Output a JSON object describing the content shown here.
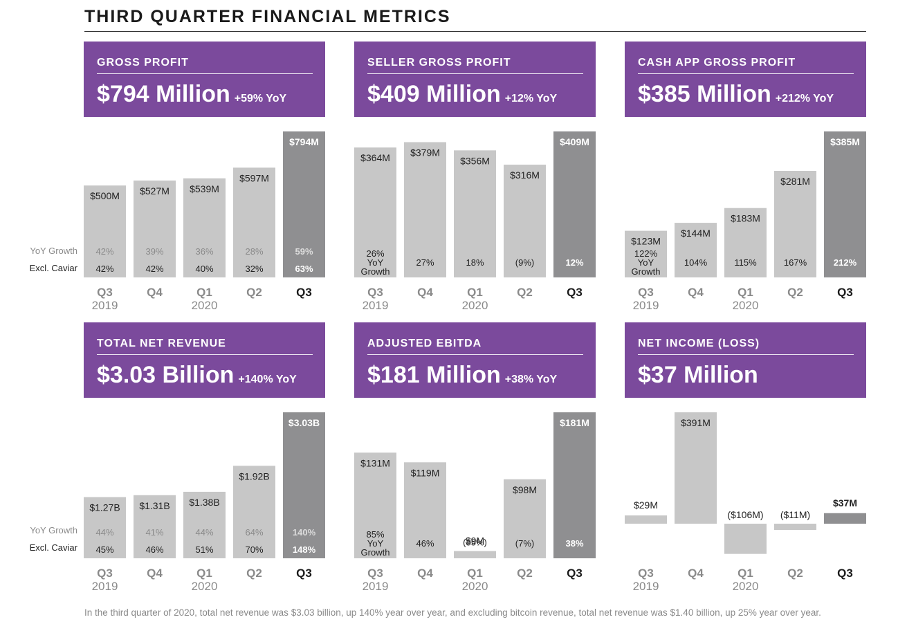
{
  "page": {
    "title": "THIRD QUARTER FINANCIAL METRICS",
    "row_labels": {
      "yoy_growth": "YoY Growth",
      "excl_caviar": "Excl. Caviar"
    },
    "footnote": "In the third quarter of 2020, total net revenue was $3.03 billion, up 140% year over year, and excluding bitcoin revenue, total net revenue was $1.40 billion, up 25% year over year."
  },
  "colors": {
    "header_purple": "#7b4a9c",
    "bar_light": "#c7c7c7",
    "bar_current": "#8f8f91",
    "muted_text": "#8a8a8a"
  },
  "panels": [
    {
      "label": "GROSS PROFIT",
      "headline": "$794 Million",
      "yoy": "+59% YoY"
    },
    {
      "label": "SELLER GROSS PROFIT",
      "headline": "$409 Million",
      "yoy": "+12% YoY"
    },
    {
      "label": "CASH APP GROSS PROFIT",
      "headline": "$385 Million",
      "yoy": "+212% YoY"
    },
    {
      "label": "TOTAL NET REVENUE",
      "headline": "$3.03 Billion",
      "yoy": "+140% YoY"
    },
    {
      "label": "ADJUSTED EBITDA",
      "headline": "$181 Million",
      "yoy": "+38% YoY"
    },
    {
      "label": "NET INCOME (LOSS)",
      "headline": "$37 Million",
      "yoy": ""
    }
  ],
  "chart_data": [
    {
      "type": "bar",
      "title": "GROSS PROFIT",
      "categories": [
        "Q3 2019",
        "Q4",
        "Q1 2020",
        "Q2",
        "Q3"
      ],
      "tick_labels": [
        [
          "Q3",
          "2019"
        ],
        [
          "Q4",
          ""
        ],
        [
          "Q1",
          "2020"
        ],
        [
          "Q2",
          ""
        ],
        [
          "Q3",
          ""
        ]
      ],
      "values": [
        500,
        527,
        539,
        597,
        794
      ],
      "value_labels": [
        "$500M",
        "$527M",
        "$539M",
        "$597M",
        "$794M"
      ],
      "unit": "$M",
      "yoy_growth": [
        "42%",
        "39%",
        "36%",
        "28%",
        "59%"
      ],
      "excl_caviar": [
        "42%",
        "42%",
        "40%",
        "32%",
        "63%"
      ],
      "ylim": [
        0,
        794
      ]
    },
    {
      "type": "bar",
      "title": "SELLER GROSS PROFIT",
      "categories": [
        "Q3 2019",
        "Q4",
        "Q1 2020",
        "Q2",
        "Q3"
      ],
      "tick_labels": [
        [
          "Q3",
          "2019"
        ],
        [
          "Q4",
          ""
        ],
        [
          "Q1",
          "2020"
        ],
        [
          "Q2",
          ""
        ],
        [
          "Q3",
          ""
        ]
      ],
      "values": [
        364,
        379,
        356,
        316,
        409
      ],
      "value_labels": [
        "$364M",
        "$379M",
        "$356M",
        "$316M",
        "$409M"
      ],
      "unit": "$M",
      "yoy_growth": [
        "26%",
        "27%",
        "18%",
        "(9%)",
        "12%"
      ],
      "first_bar_note": [
        "YoY",
        "Growth"
      ],
      "ylim": [
        0,
        409
      ]
    },
    {
      "type": "bar",
      "title": "CASH APP GROSS PROFIT",
      "categories": [
        "Q3 2019",
        "Q4",
        "Q1 2020",
        "Q2",
        "Q3"
      ],
      "tick_labels": [
        [
          "Q3",
          "2019"
        ],
        [
          "Q4",
          ""
        ],
        [
          "Q1",
          "2020"
        ],
        [
          "Q2",
          ""
        ],
        [
          "Q3",
          ""
        ]
      ],
      "values": [
        123,
        144,
        183,
        281,
        385
      ],
      "value_labels": [
        "$123M",
        "$144M",
        "$183M",
        "$281M",
        "$385M"
      ],
      "unit": "$M",
      "yoy_growth": [
        "122%",
        "104%",
        "115%",
        "167%",
        "212%"
      ],
      "first_bar_note": [
        "YoY",
        "Growth"
      ],
      "ylim": [
        0,
        385
      ]
    },
    {
      "type": "bar",
      "title": "TOTAL NET REVENUE",
      "categories": [
        "Q3 2019",
        "Q4",
        "Q1 2020",
        "Q2",
        "Q3"
      ],
      "tick_labels": [
        [
          "Q3",
          "2019"
        ],
        [
          "Q4",
          ""
        ],
        [
          "Q1",
          "2020"
        ],
        [
          "Q2",
          ""
        ],
        [
          "Q3",
          ""
        ]
      ],
      "values": [
        1.27,
        1.31,
        1.38,
        1.92,
        3.03
      ],
      "value_labels": [
        "$1.27B",
        "$1.31B",
        "$1.38B",
        "$1.92B",
        "$3.03B"
      ],
      "unit": "$B",
      "yoy_growth": [
        "44%",
        "41%",
        "44%",
        "64%",
        "140%"
      ],
      "excl_caviar": [
        "45%",
        "46%",
        "51%",
        "70%",
        "148%"
      ],
      "ylim": [
        0,
        3.03
      ]
    },
    {
      "type": "bar",
      "title": "ADJUSTED EBITDA",
      "categories": [
        "Q3 2019",
        "Q4",
        "Q1 2020",
        "Q2",
        "Q3"
      ],
      "tick_labels": [
        [
          "Q3",
          "2019"
        ],
        [
          "Q4",
          ""
        ],
        [
          "Q1",
          "2020"
        ],
        [
          "Q2",
          ""
        ],
        [
          "Q3",
          ""
        ]
      ],
      "values": [
        131,
        119,
        9,
        98,
        181
      ],
      "value_labels": [
        "$131M",
        "$119M",
        "$9M",
        "$98M",
        "$181M"
      ],
      "unit": "$M",
      "yoy_growth": [
        "85%",
        "46%",
        "(85%)",
        "(7%)",
        "38%"
      ],
      "first_bar_note": [
        "YoY",
        "Growth"
      ],
      "ylim": [
        0,
        181
      ]
    },
    {
      "type": "bar",
      "title": "NET INCOME (LOSS)",
      "categories": [
        "Q3 2019",
        "Q4",
        "Q1 2020",
        "Q2",
        "Q3"
      ],
      "tick_labels": [
        [
          "Q3",
          "2019"
        ],
        [
          "Q4",
          ""
        ],
        [
          "Q1",
          "2020"
        ],
        [
          "Q2",
          ""
        ],
        [
          "Q3",
          ""
        ]
      ],
      "values": [
        29,
        391,
        -106,
        -11,
        37
      ],
      "value_labels": [
        "$29M",
        "$391M",
        "($106M)",
        "($11M)",
        "$37M"
      ],
      "unit": "$M",
      "ylim": [
        -106,
        391
      ]
    }
  ]
}
